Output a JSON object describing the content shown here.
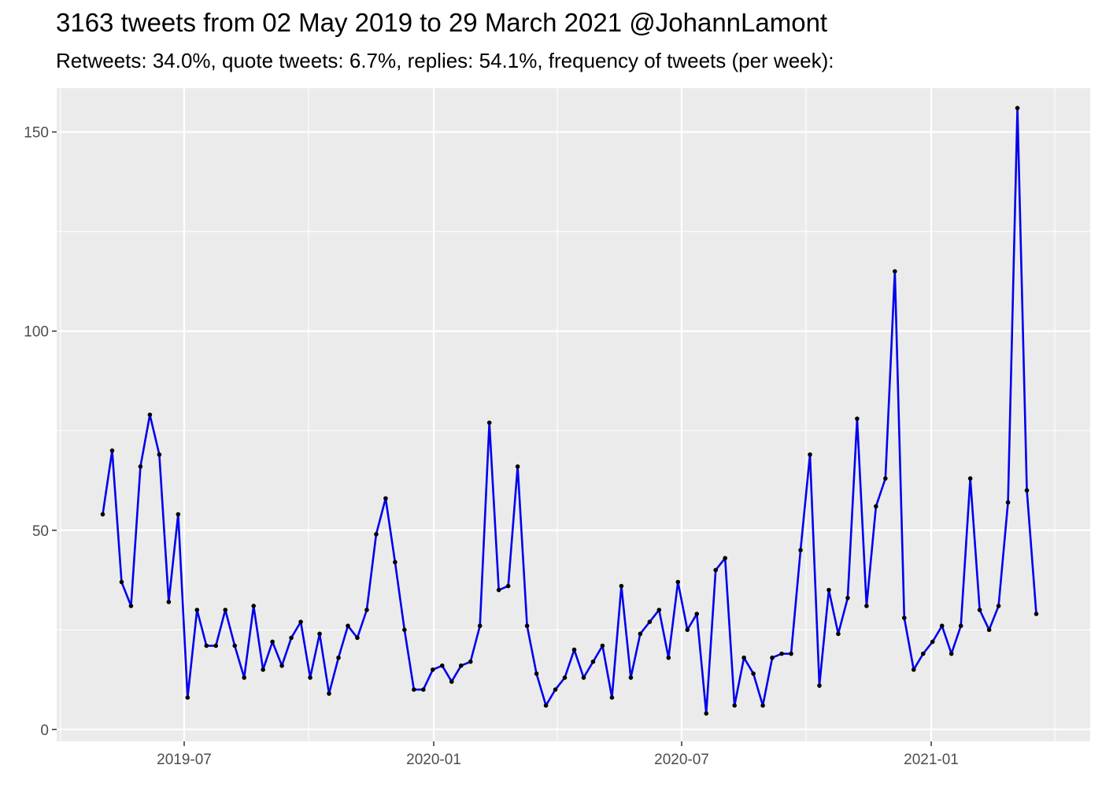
{
  "chart_data": {
    "type": "line",
    "title": "3163 tweets from 02 May 2019 to 29 March 2021 @JohannLamont",
    "subtitle": "Retweets: 34.0%, quote tweets: 6.7%, replies: 54.1%, frequency of tweets (per week):",
    "xlabel": "",
    "ylabel": "",
    "x_ticks": [
      "2019-07",
      "2020-01",
      "2020-07",
      "2021-01"
    ],
    "y_ticks": [
      "0",
      "50",
      "100",
      "150"
    ],
    "ylim": [
      -3,
      161
    ],
    "grid": true,
    "legend": "none",
    "line_color": "#0000EE",
    "point_color": "#000000",
    "panel_background": "#EBEBEB",
    "series": [
      {
        "values": [
          54,
          70,
          37,
          31,
          66,
          79,
          69,
          32,
          54,
          8,
          30,
          21,
          21,
          30,
          21,
          13,
          31,
          15,
          22,
          16,
          23,
          27,
          13,
          24,
          9,
          18,
          26,
          23,
          30,
          49,
          58,
          42,
          25,
          10,
          10,
          15,
          16,
          12,
          16,
          17,
          26,
          77,
          35,
          36,
          66,
          26,
          14,
          6,
          10,
          13,
          20,
          13,
          17,
          21,
          8,
          36,
          13,
          24,
          27,
          30,
          18,
          37,
          25,
          29,
          4,
          40,
          43,
          6,
          18,
          14,
          6,
          18,
          19,
          19,
          45,
          69,
          11,
          35,
          24,
          33,
          78,
          31,
          56,
          63,
          115,
          28,
          15,
          19,
          22,
          26,
          19,
          26,
          63,
          30,
          25,
          31,
          57,
          156,
          60,
          29
        ]
      }
    ]
  }
}
